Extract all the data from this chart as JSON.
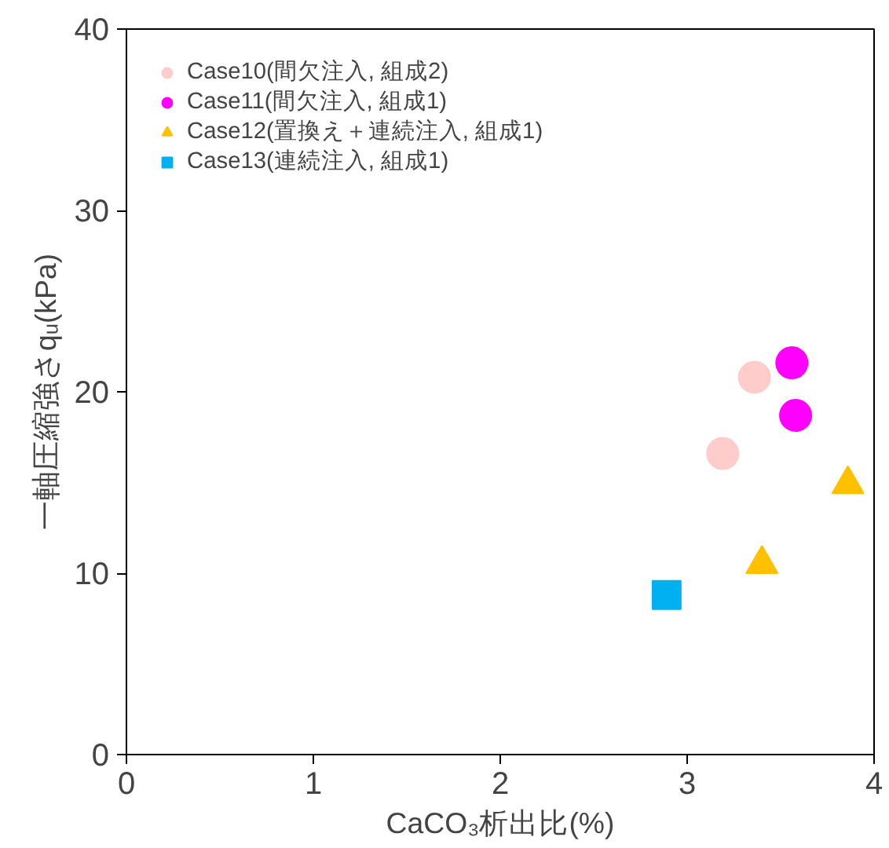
{
  "chart_data": {
    "type": "scatter",
    "xlabel": "CaCO₃析出比(%)",
    "ylabel": "一軸圧縮強さqᵤ(kPa)",
    "xlim": [
      0,
      4
    ],
    "xticks": [
      0,
      1,
      2,
      3,
      4
    ],
    "ylim": [
      0,
      40
    ],
    "yticks": [
      0,
      10,
      20,
      30,
      40
    ],
    "grid": false,
    "legend": "top left",
    "series": [
      {
        "name": "Case10(間欠注入, 組成2)",
        "color": "#ffcccc",
        "marker": "circle",
        "x": [
          3.19,
          3.36
        ],
        "values": [
          16.6,
          20.8
        ]
      },
      {
        "name": "Case11(間欠注入, 組成1)",
        "color": "#ff00ff",
        "marker": "circle",
        "x": [
          3.56,
          3.58
        ],
        "values": [
          21.6,
          18.7
        ]
      },
      {
        "name": "Case12(置換え＋連続注入, 組成1)",
        "color": "#ffc000",
        "marker": "triangle",
        "x": [
          3.4,
          3.86
        ],
        "values": [
          10.5,
          14.9
        ]
      },
      {
        "name": "Case13(連続注入, 組成1)",
        "color": "#00b0f0",
        "marker": "square",
        "x": [
          2.89
        ],
        "values": [
          8.8
        ]
      }
    ]
  }
}
